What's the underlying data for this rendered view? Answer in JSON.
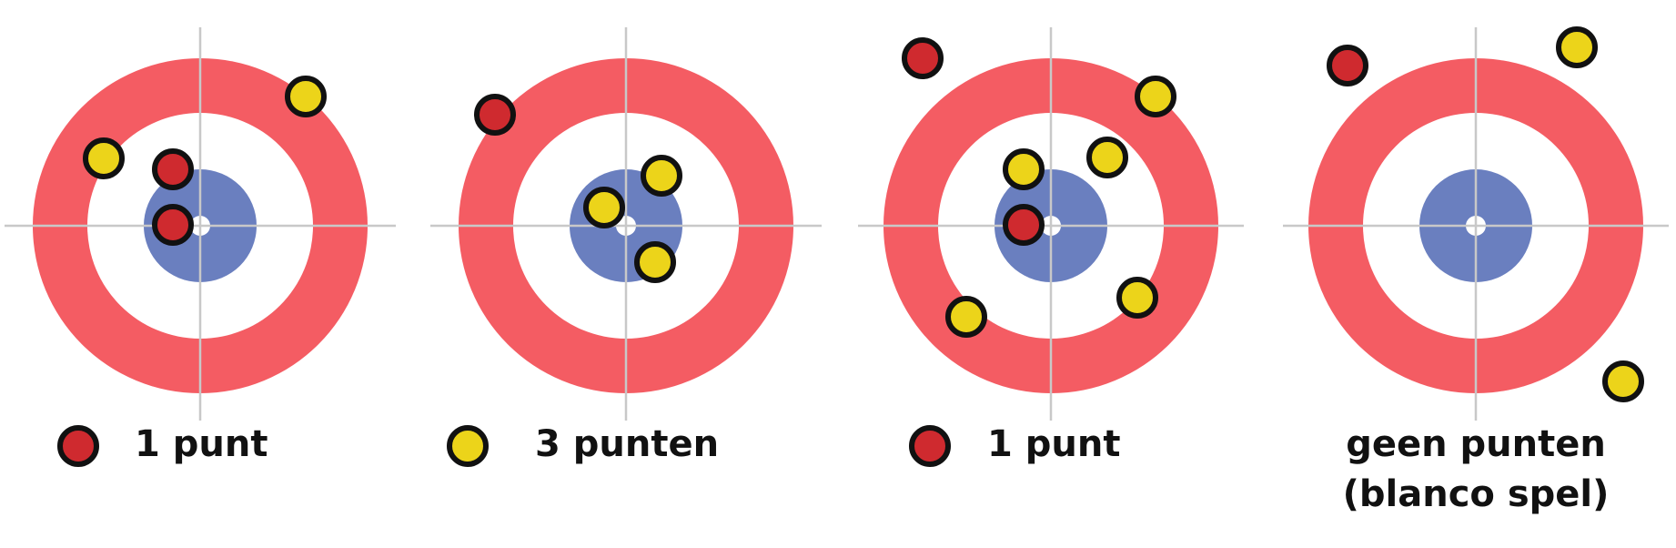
{
  "colors": {
    "ring_outer": "#f45c63",
    "ring_inner": "#ffffff",
    "button": "#6a7fbf",
    "center": "#ffffff",
    "axis": "#c8c8c8",
    "stone_red": "#cf2a2f",
    "stone_yellow": "#ecd41a",
    "stone_outline": "#111111",
    "text": "#111111"
  },
  "panels": [
    {
      "id": "panel-1",
      "stones": [
        {
          "color": "yellow"
        },
        {
          "color": "red"
        },
        {
          "color": "yellow"
        },
        {
          "color": "red"
        }
      ],
      "result": {
        "stone": "red",
        "lines": [
          "1 punt"
        ]
      }
    },
    {
      "id": "panel-2",
      "stones": [
        {
          "color": "red"
        },
        {
          "color": "yellow"
        },
        {
          "color": "yellow"
        },
        {
          "color": "yellow"
        }
      ],
      "result": {
        "stone": "yellow",
        "lines": [
          "3 punten"
        ]
      }
    },
    {
      "id": "panel-3",
      "stones": [
        {
          "color": "red"
        },
        {
          "color": "yellow"
        },
        {
          "color": "yellow"
        },
        {
          "color": "yellow"
        },
        {
          "color": "red"
        },
        {
          "color": "yellow"
        },
        {
          "color": "yellow"
        }
      ],
      "result": {
        "stone": "red",
        "lines": [
          "1 punt"
        ]
      }
    },
    {
      "id": "panel-4",
      "stones": [
        {
          "color": "red"
        },
        {
          "color": "yellow"
        },
        {
          "color": "yellow"
        }
      ],
      "result": {
        "stone": null,
        "lines": [
          "geen punten",
          "(blanco spel)"
        ]
      }
    }
  ]
}
